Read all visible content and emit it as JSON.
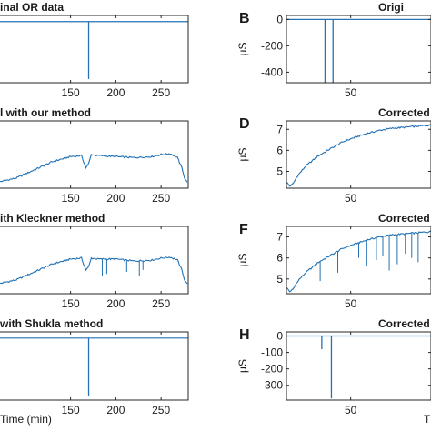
{
  "figure": {
    "line_color": "#2272B5",
    "axis_color": "#262626"
  },
  "chart_data": [
    {
      "panel": "",
      "title": "inal OR data",
      "type": "line",
      "xlabel": "",
      "ylabel": "",
      "xlim": [
        70,
        280
      ],
      "ylim": [
        -500,
        50
      ],
      "xticks": [
        150,
        200,
        250
      ],
      "yticks": [],
      "baseline": 0,
      "spikes": [
        {
          "x": 170,
          "y": -470
        }
      ],
      "x": [],
      "y": []
    },
    {
      "panel": "B",
      "title": "Origi",
      "type": "line",
      "xlabel": "",
      "ylabel": "μS",
      "xlim": [
        10,
        100
      ],
      "ylim": [
        -480,
        30
      ],
      "xticks": [
        50
      ],
      "yticks": [
        0,
        -200,
        -400
      ],
      "baseline": 0,
      "spikes": [
        {
          "x": 34,
          "y": -480
        },
        {
          "x": 39,
          "y": -480
        }
      ],
      "x": [],
      "y": []
    },
    {
      "panel": "",
      "title": "l with our method",
      "type": "line",
      "xlabel": "",
      "ylabel": "",
      "xlim": [
        70,
        280
      ],
      "ylim": [
        4.3,
        7.6
      ],
      "xticks": [
        150,
        200,
        250
      ],
      "yticks": [],
      "x": [
        70,
        90,
        110,
        130,
        150,
        162,
        167,
        170,
        173,
        180,
        200,
        220,
        240,
        250,
        260,
        268,
        273,
        276,
        279
      ],
      "y": [
        4.6,
        4.8,
        5.2,
        5.6,
        5.85,
        5.9,
        5.3,
        5.5,
        5.95,
        5.9,
        5.85,
        5.8,
        5.85,
        5.95,
        6.0,
        5.8,
        5.3,
        4.8,
        4.6
      ]
    },
    {
      "panel": "D",
      "title": "Corrected",
      "type": "line",
      "xlabel": "",
      "ylabel": "μS",
      "xlim": [
        10,
        100
      ],
      "ylim": [
        4.2,
        7.4
      ],
      "xticks": [
        50
      ],
      "yticks": [
        5,
        6,
        7
      ],
      "x": [
        10,
        12,
        14,
        17,
        22,
        30,
        38,
        45,
        52,
        60,
        68,
        76,
        84,
        92,
        100
      ],
      "y": [
        4.5,
        4.3,
        4.4,
        4.8,
        5.25,
        5.75,
        6.1,
        6.4,
        6.6,
        6.8,
        6.95,
        7.05,
        7.1,
        7.15,
        7.2
      ]
    },
    {
      "panel": "",
      "title": "ith Kleckner method",
      "type": "line",
      "xlabel": "",
      "ylabel": "",
      "xlim": [
        70,
        280
      ],
      "ylim": [
        4.0,
        7.4
      ],
      "xticks": [
        150,
        200,
        250
      ],
      "yticks": [],
      "x": [
        70,
        90,
        110,
        130,
        150,
        162,
        167,
        170,
        173,
        180,
        200,
        220,
        240,
        250,
        260,
        268,
        273,
        276,
        279
      ],
      "y": [
        4.5,
        4.7,
        5.1,
        5.5,
        5.75,
        5.8,
        5.2,
        5.35,
        5.8,
        5.75,
        5.75,
        5.65,
        5.7,
        5.8,
        5.85,
        5.7,
        5.2,
        4.7,
        4.5
      ],
      "dips": [
        {
          "x": 185,
          "y": 4.9
        },
        {
          "x": 190,
          "y": 5.0
        },
        {
          "x": 212,
          "y": 5.1
        },
        {
          "x": 226,
          "y": 4.9
        },
        {
          "x": 230,
          "y": 5.2
        }
      ]
    },
    {
      "panel": "F",
      "title": "Corrected w",
      "type": "line",
      "xlabel": "",
      "ylabel": "μS",
      "xlim": [
        10,
        100
      ],
      "ylim": [
        4.3,
        7.5
      ],
      "xticks": [
        50
      ],
      "yticks": [
        5,
        6,
        7
      ],
      "x": [
        10,
        12,
        14,
        17,
        22,
        30,
        38,
        45,
        52,
        60,
        68,
        76,
        84,
        92,
        100
      ],
      "y": [
        4.6,
        4.4,
        4.5,
        4.9,
        5.3,
        5.8,
        6.15,
        6.45,
        6.65,
        6.85,
        7.0,
        7.1,
        7.15,
        7.2,
        7.25
      ],
      "dips": [
        {
          "x": 31,
          "y": 4.9
        },
        {
          "x": 42,
          "y": 5.3
        },
        {
          "x": 55,
          "y": 6.0
        },
        {
          "x": 60,
          "y": 5.6
        },
        {
          "x": 66,
          "y": 5.9
        },
        {
          "x": 70,
          "y": 6.1
        },
        {
          "x": 74,
          "y": 5.4
        },
        {
          "x": 79,
          "y": 5.7
        },
        {
          "x": 84,
          "y": 6.2
        },
        {
          "x": 88,
          "y": 6.0
        },
        {
          "x": 92,
          "y": 5.8
        }
      ]
    },
    {
      "panel": "",
      "title": "with Shukla method",
      "type": "line",
      "xlabel": "Time (min)",
      "ylabel": "",
      "xlim": [
        70,
        280
      ],
      "ylim": [
        -500,
        50
      ],
      "xticks": [
        150,
        200,
        250
      ],
      "yticks": [],
      "baseline": 0,
      "spikes": [
        {
          "x": 170,
          "y": -470
        }
      ],
      "x": [],
      "y": []
    },
    {
      "panel": "H",
      "title": "Corrected w",
      "type": "line",
      "xlabel": "T",
      "ylabel": "μS",
      "xlim": [
        10,
        100
      ],
      "ylim": [
        -390,
        25
      ],
      "xticks": [
        50
      ],
      "yticks": [
        0,
        -100,
        -200,
        -300
      ],
      "baseline": 0,
      "spikes": [
        {
          "x": 32,
          "y": -80
        },
        {
          "x": 38,
          "y": -380
        }
      ],
      "x": [],
      "y": []
    }
  ]
}
